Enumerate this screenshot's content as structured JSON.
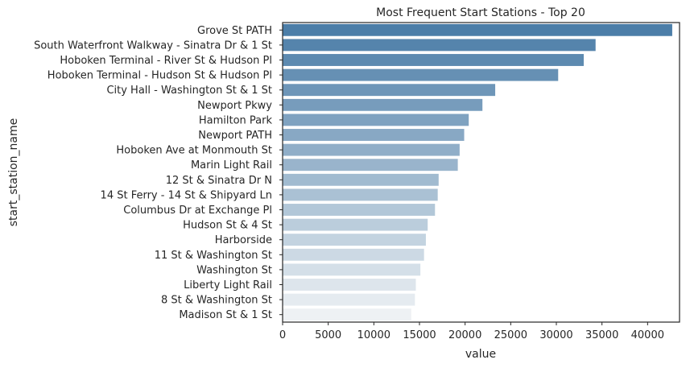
{
  "chart_data": {
    "type": "bar",
    "orientation": "horizontal",
    "title": "Most Frequent Start Stations - Top 20",
    "xlabel": "value",
    "ylabel": "start_station_name",
    "xlim": [
      0,
      43500
    ],
    "xticks": [
      0,
      5000,
      10000,
      15000,
      20000,
      25000,
      30000,
      35000,
      40000
    ],
    "grid": false,
    "categories": [
      "Grove St PATH",
      "South Waterfront Walkway - Sinatra Dr & 1 St",
      "Hoboken Terminal - River St & Hudson Pl",
      "Hoboken Terminal - Hudson St & Hudson Pl",
      "City Hall - Washington St & 1 St",
      "Newport Pkwy",
      "Hamilton Park",
      "Newport PATH",
      "Hoboken Ave at Monmouth St",
      "Marin Light Rail",
      "12 St & Sinatra Dr N",
      "14 St Ferry - 14 St & Shipyard Ln",
      "Columbus Dr at Exchange Pl",
      "Hudson St & 4 St",
      "Harborside",
      "11 St & Washington St",
      "Washington St",
      "Liberty Light Rail",
      "8 St & Washington St",
      "Madison St & 1 St"
    ],
    "values": [
      42700,
      34300,
      33000,
      30200,
      23300,
      21900,
      20400,
      19900,
      19400,
      19200,
      17100,
      17000,
      16700,
      15900,
      15700,
      15500,
      15100,
      14600,
      14500,
      14100
    ],
    "palette": {
      "start": "#4c7ea8",
      "end": "#eef1f4"
    }
  }
}
